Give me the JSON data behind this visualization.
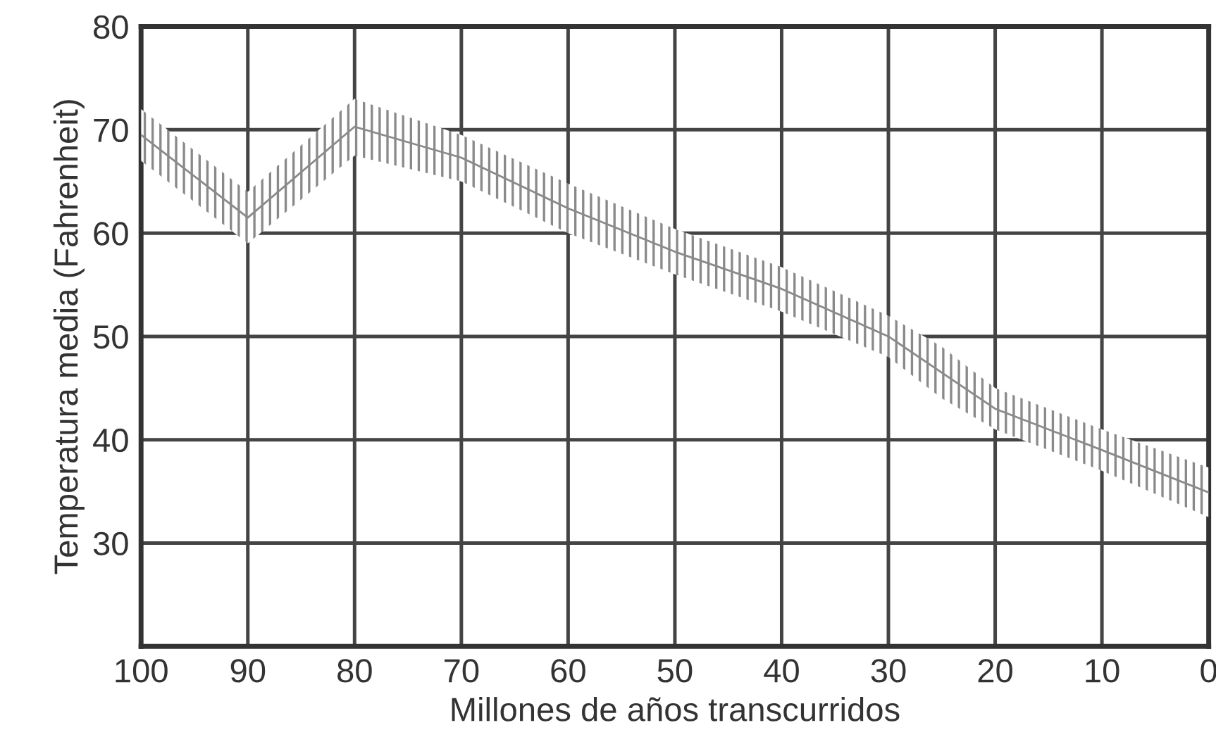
{
  "chart_data": {
    "type": "line",
    "xlabel": "Millones de años transcurridos",
    "ylabel": "Temperatura media (Fahrenheit)",
    "x": [
      100,
      90,
      80,
      70,
      60,
      50,
      40,
      30,
      25,
      20,
      10,
      0
    ],
    "series": [
      {
        "color": "#8a8a8a",
        "values": [
          69.5,
          61.5,
          70.3,
          67.3,
          62.4,
          58.2,
          54.6,
          50,
          46.5,
          43,
          39,
          34.9
        ],
        "lower": [
          67,
          59,
          67.5,
          65,
          60,
          56,
          52.4,
          48,
          44,
          41,
          37,
          32.5
        ],
        "upper": [
          72,
          64,
          73,
          69.5,
          64.8,
          60.4,
          56.7,
          52,
          49,
          45,
          41,
          37.3
        ]
      }
    ],
    "xlim": [
      100,
      0
    ],
    "xticks": [
      100,
      90,
      80,
      70,
      60,
      50,
      40,
      30,
      20,
      10,
      0
    ],
    "ylim": [
      20,
      80
    ],
    "yticks": [
      {
        "value": 20,
        "label": null
      },
      30,
      40,
      50,
      60,
      70,
      80
    ],
    "grid": true
  }
}
